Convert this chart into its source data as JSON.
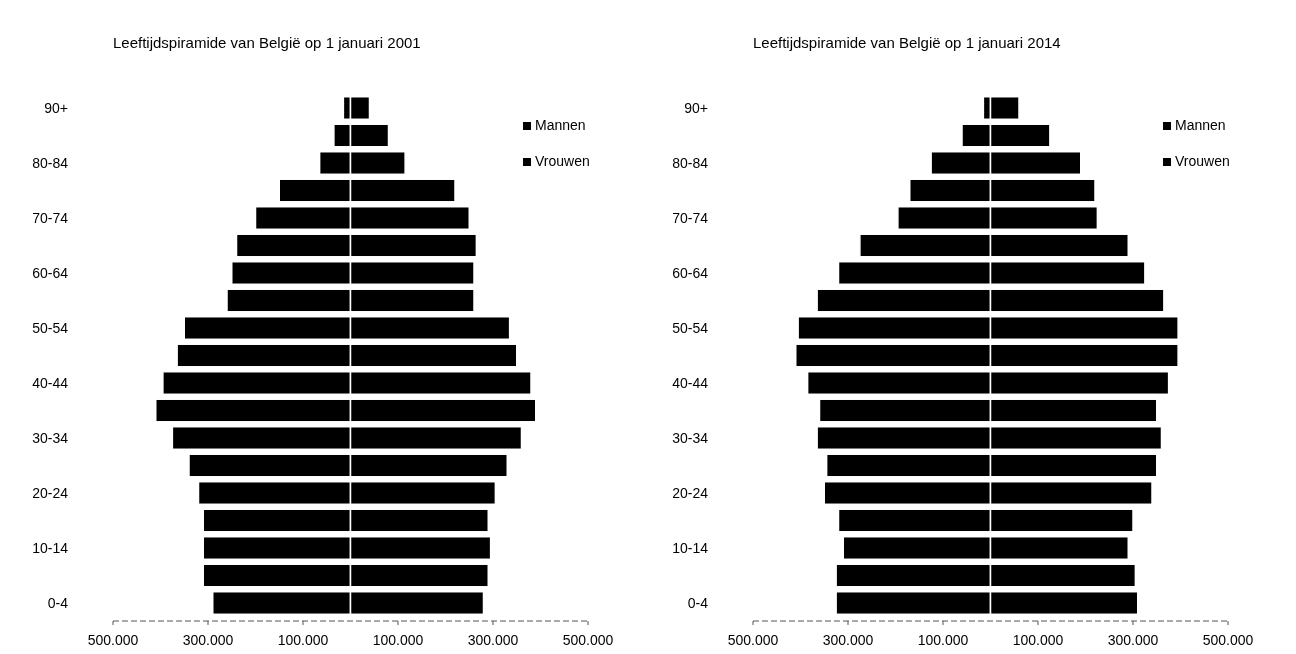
{
  "chart_data": [
    {
      "type": "bar",
      "title": "Leeftijdspiramide van België op 1 januari 2001",
      "orientation": "horizontal",
      "stacked": true,
      "legend": "top right",
      "grid": false,
      "categories": [
        "90+",
        null,
        "80-84",
        null,
        "70-74",
        null,
        "60-64",
        null,
        "50-54",
        null,
        "40-44",
        null,
        "30-34",
        null,
        "20-24",
        null,
        "10-14",
        null,
        "0-4"
      ],
      "xlim": [
        -500000,
        500000
      ],
      "xticks": [
        {
          "value": -500000,
          "label": "500.000"
        },
        {
          "value": -300000,
          "label": "300.000"
        },
        {
          "value": -100000,
          "label": "100.000"
        },
        {
          "value": 100000,
          "label": "100.000"
        },
        {
          "value": 300000,
          "label": "300.000"
        },
        {
          "value": 500000,
          "label": "500.000"
        }
      ],
      "series": [
        {
          "name": "Mannen",
          "color": "#000000",
          "values": [
            -15000,
            -35000,
            -65000,
            -150000,
            -200000,
            -240000,
            -250000,
            -260000,
            -350000,
            -365000,
            -395000,
            -410000,
            -375000,
            -340000,
            -320000,
            -310000,
            -310000,
            -310000,
            -290000
          ]
        },
        {
          "name": "Vrouwen",
          "color": "#000000",
          "values": [
            40000,
            80000,
            115000,
            220000,
            250000,
            265000,
            260000,
            260000,
            335000,
            350000,
            380000,
            390000,
            360000,
            330000,
            305000,
            290000,
            295000,
            290000,
            280000
          ]
        }
      ]
    },
    {
      "type": "bar",
      "title": "Leeftijdspiramide van België op 1 januari 2014",
      "orientation": "horizontal",
      "stacked": true,
      "legend": "top right",
      "grid": false,
      "categories": [
        "90+",
        null,
        "80-84",
        null,
        "70-74",
        null,
        "60-64",
        null,
        "50-54",
        null,
        "40-44",
        null,
        "30-34",
        null,
        "20-24",
        null,
        "10-14",
        null,
        "0-4"
      ],
      "xlim": [
        -500000,
        500000
      ],
      "xticks": [
        {
          "value": -500000,
          "label": "500.000"
        },
        {
          "value": -300000,
          "label": "300.000"
        },
        {
          "value": -100000,
          "label": "100.000"
        },
        {
          "value": 100000,
          "label": "100.000"
        },
        {
          "value": 300000,
          "label": "300.000"
        },
        {
          "value": 500000,
          "label": "500.000"
        }
      ],
      "series": [
        {
          "name": "Mannen",
          "color": "#000000",
          "values": [
            -15000,
            -60000,
            -125000,
            -170000,
            -195000,
            -275000,
            -320000,
            -365000,
            -405000,
            -410000,
            -385000,
            -360000,
            -365000,
            -345000,
            -350000,
            -320000,
            -310000,
            -325000,
            -325000
          ]
        },
        {
          "name": "Vrouwen",
          "color": "#000000",
          "values": [
            60000,
            125000,
            190000,
            220000,
            225000,
            290000,
            325000,
            365000,
            395000,
            395000,
            375000,
            350000,
            360000,
            350000,
            340000,
            300000,
            290000,
            305000,
            310000
          ]
        }
      ]
    }
  ]
}
